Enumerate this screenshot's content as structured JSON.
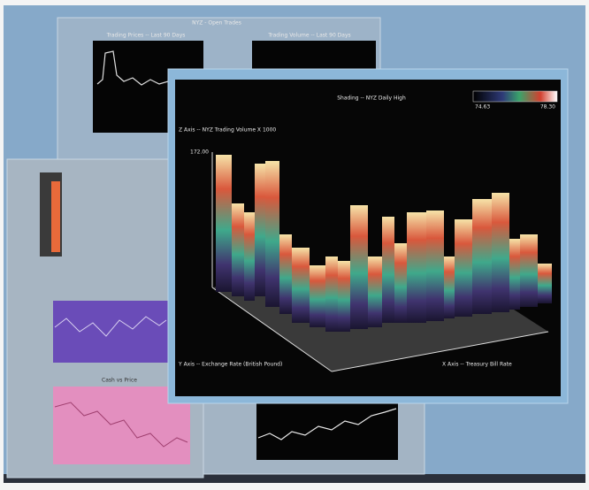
{
  "windows": {
    "back": {
      "title": "NYZ - Open Trades",
      "panels": [
        "Trading Prices -- Last 90 Days",
        "Trading Volume -- Last 90 Days"
      ]
    },
    "left": {
      "title": "Cash vs Price"
    },
    "main": {
      "shading_title": "Shading -- NYZ Daily High",
      "colorbar_min": "74.63",
      "colorbar_max": "78.30",
      "z_axis": "Z Axis -- NYZ Trading Volume X 1000",
      "z_max": "172.00",
      "y_axis": "Y Axis -- Exchange Rate (British Pound)",
      "x_axis": "X Axis -- Treasury Bill Rate"
    }
  }
}
